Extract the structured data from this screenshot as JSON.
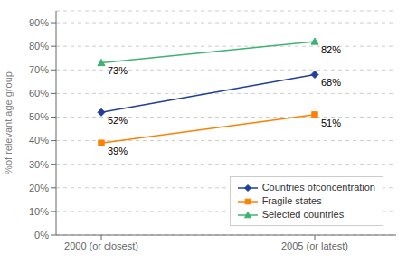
{
  "chart_data": {
    "type": "line",
    "categories": [
      "2000 (or closest)",
      "2005 (or latest)"
    ],
    "series": [
      {
        "name": "Countries ofconcentration",
        "color": "#1F3F99",
        "marker": "diamond",
        "values": [
          52,
          68
        ],
        "value_labels": [
          "52%",
          "68%"
        ]
      },
      {
        "name": "Fragile states",
        "color": "#FF8000",
        "marker": "square",
        "values": [
          39,
          51
        ],
        "value_labels": [
          "39%",
          "51%"
        ]
      },
      {
        "name": "Selected countries",
        "color": "#3CB371",
        "marker": "triangle",
        "values": [
          73,
          82
        ],
        "value_labels": [
          "73%",
          "82%"
        ]
      }
    ],
    "ylabel": "%of relevant age group",
    "ylim": [
      0,
      95
    ],
    "yticks": [
      {
        "value": 0,
        "label": "0%"
      },
      {
        "value": 10,
        "label": "10%"
      },
      {
        "value": 20,
        "label": "20%"
      },
      {
        "value": 30,
        "label": "30%"
      },
      {
        "value": 40,
        "label": "40%"
      },
      {
        "value": 50,
        "label": "50%"
      },
      {
        "value": 60,
        "label": "60%"
      },
      {
        "value": 70,
        "label": "70%"
      },
      {
        "value": 80,
        "label": "80%"
      },
      {
        "value": 90,
        "label": "90%"
      }
    ],
    "grid": true,
    "legend": "lower right",
    "data_labels": true
  }
}
